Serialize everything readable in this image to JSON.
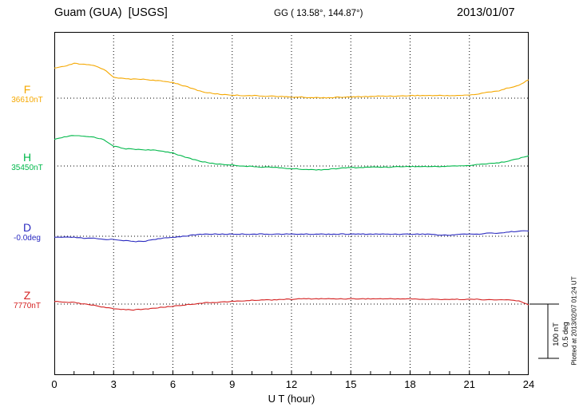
{
  "header": {
    "station": "Guam (GUA)  [USGS]",
    "coordinates": "GG ( 13.58°, 144.87°)",
    "date": "2013/01/07"
  },
  "footer": {
    "plotted_at": "Plotted at 2013/02/07 01:24 UT"
  },
  "chart_data": {
    "type": "line",
    "title": "Guam (GUA) [USGS] magnetogram for 2013/01/07",
    "xlabel": "U T (hour)",
    "ylabel": "",
    "xlim": [
      0,
      24
    ],
    "x_ticks": [
      0,
      3,
      6,
      9,
      12,
      15,
      18,
      21,
      24
    ],
    "step_hours": 0.5,
    "grid": "dotted vertical lines every 3 h; dotted horizontal line at each channel baseline",
    "legend_position": "left channel labels",
    "scale_bar": {
      "labels": [
        "100 nT",
        "0.5 deg"
      ],
      "spans": {
        "nT": 100,
        "deg": 0.5
      }
    },
    "series": [
      {
        "name": "F",
        "unit": "nT",
        "color": "#f5a800",
        "baseline": 36610,
        "baseline_label": "36610nT",
        "values": [
          36667,
          36670,
          36676,
          36674,
          36672,
          36665,
          36650,
          36647,
          36646,
          36646,
          36644,
          36642,
          36640,
          36634,
          36628,
          36622,
          36619,
          36617,
          36616,
          36615,
          36615,
          36614,
          36614,
          36613,
          36612,
          36612,
          36611,
          36611,
          36611,
          36612,
          36612,
          36613,
          36613,
          36614,
          36614,
          36614,
          36615,
          36615,
          36615,
          36615,
          36615,
          36615,
          36616,
          36618,
          36622,
          36624,
          36630,
          36634,
          36645
        ]
      },
      {
        "name": "H",
        "unit": "nT",
        "color": "#00b84a",
        "baseline": 35450,
        "baseline_label": "35450nT",
        "values": [
          35500,
          35505,
          35508,
          35506,
          35505,
          35500,
          35488,
          35483,
          35482,
          35481,
          35480,
          35478,
          35475,
          35468,
          35463,
          35458,
          35455,
          35453,
          35452,
          35450,
          35449,
          35448,
          35448,
          35446,
          35445,
          35444,
          35443,
          35443,
          35444,
          35446,
          35447,
          35447,
          35448,
          35448,
          35448,
          35449,
          35449,
          35449,
          35449,
          35449,
          35450,
          35450,
          35451,
          35453,
          35455,
          35456,
          35460,
          35464,
          35470
        ]
      },
      {
        "name": "D",
        "unit": "deg",
        "color": "#2a2ac0",
        "baseline": 0,
        "baseline_label": "-0.0deg",
        "values": [
          -0.01,
          -0.01,
          -0.01,
          -0.02,
          -0.02,
          -0.03,
          -0.03,
          -0.04,
          -0.05,
          -0.05,
          -0.03,
          -0.02,
          -0.01,
          0.0,
          0.01,
          0.02,
          0.02,
          0.02,
          0.02,
          0.02,
          0.02,
          0.02,
          0.02,
          0.02,
          0.02,
          0.02,
          0.02,
          0.02,
          0.02,
          0.02,
          0.02,
          0.02,
          0.02,
          0.02,
          0.02,
          0.02,
          0.02,
          0.02,
          0.02,
          0.01,
          0.01,
          0.02,
          0.02,
          0.02,
          0.03,
          0.03,
          0.04,
          0.05,
          0.05
        ]
      },
      {
        "name": "Z",
        "unit": "nT",
        "color": "#d42222",
        "baseline": 7770,
        "baseline_label": "7770nT",
        "values": [
          7775,
          7774,
          7773,
          7770,
          7768,
          7764,
          7761,
          7760,
          7759,
          7760,
          7762,
          7764,
          7766,
          7768,
          7770,
          7772,
          7773,
          7774,
          7775,
          7776,
          7777,
          7778,
          7778,
          7779,
          7779,
          7780,
          7780,
          7780,
          7780,
          7780,
          7780,
          7780,
          7780,
          7780,
          7780,
          7780,
          7780,
          7779,
          7779,
          7779,
          7779,
          7779,
          7779,
          7779,
          7778,
          7778,
          7778,
          7776,
          7768
        ]
      }
    ]
  }
}
